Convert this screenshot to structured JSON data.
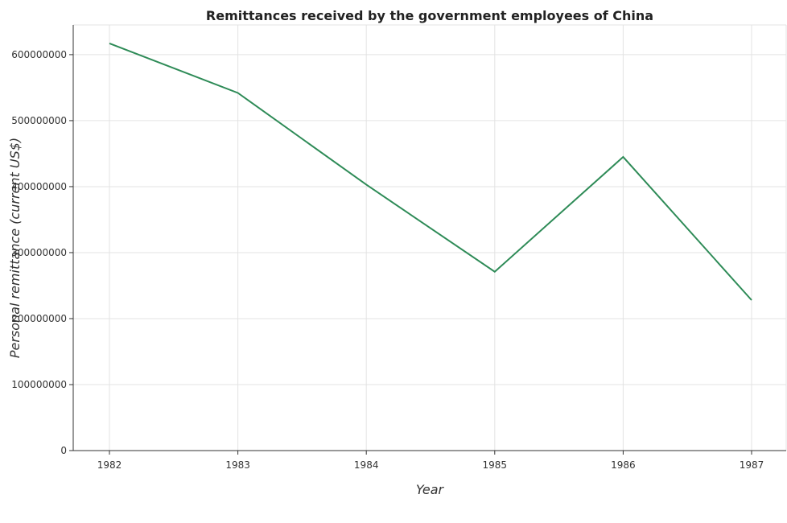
{
  "chart_data": {
    "type": "line",
    "title": "Remittances received by the government employees of China",
    "xlabel": "Year",
    "ylabel": "Personal remittance (current US$)",
    "x": [
      "1982",
      "1983",
      "1984",
      "1985",
      "1986",
      "1987"
    ],
    "series": [
      {
        "values": [
          617000000,
          542000000,
          403000000,
          271000000,
          445000000,
          228000000
        ]
      }
    ],
    "yticks": [
      0,
      100000000,
      200000000,
      300000000,
      400000000,
      500000000,
      600000000
    ],
    "ytick_labels": [
      "0",
      "100000000",
      "200000000",
      "300000000",
      "400000000",
      "500000000",
      "600000000"
    ],
    "ylim": [
      0,
      645000000
    ],
    "grid": true,
    "line_color": "#2e8b57"
  }
}
